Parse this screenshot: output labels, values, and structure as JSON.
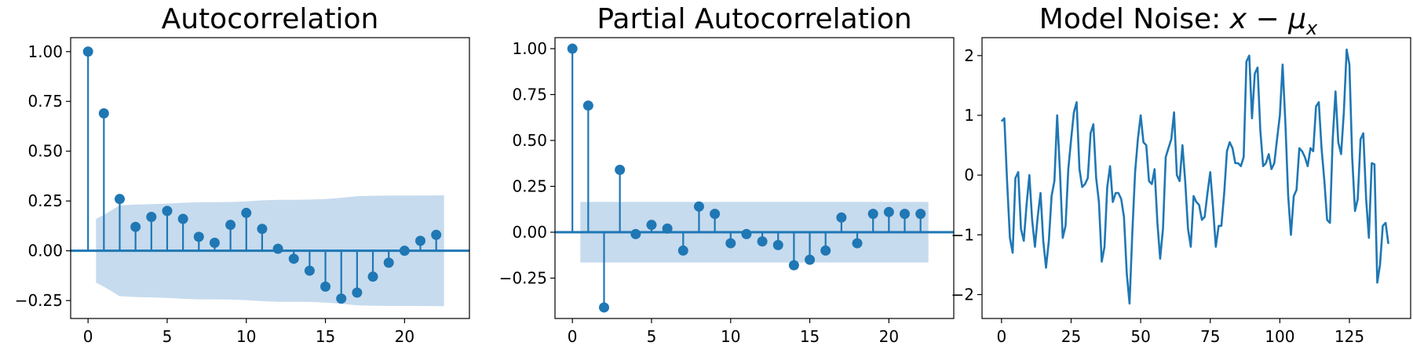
{
  "chart_data": [
    {
      "type": "stem",
      "title": "Autocorrelation",
      "xlabel": "",
      "ylabel": "",
      "xlim": [
        -1.1,
        24.1
      ],
      "ylim": [
        -0.34,
        1.07
      ],
      "xticks": [
        0,
        5,
        10,
        15,
        20
      ],
      "yticks": [
        1.0,
        0.75,
        0.5,
        0.25,
        0.0,
        -0.25
      ],
      "ytick_labels": [
        "1.00",
        "0.75",
        "0.50",
        "0.25",
        "0.00",
        "−0.25"
      ],
      "color": "#1f77b4",
      "band_color": "#c6dbee",
      "lags": [
        0,
        1,
        2,
        3,
        4,
        5,
        6,
        7,
        8,
        9,
        10,
        11,
        12,
        13,
        14,
        15,
        16,
        17,
        18,
        19,
        20,
        21,
        22
      ],
      "values": [
        1.0,
        0.69,
        0.26,
        0.12,
        0.17,
        0.2,
        0.16,
        0.07,
        0.04,
        0.13,
        0.19,
        0.11,
        0.01,
        -0.04,
        -0.1,
        -0.18,
        -0.24,
        -0.21,
        -0.13,
        -0.06,
        0.0,
        0.05,
        0.08
      ],
      "band": {
        "x": [
          0.5,
          1,
          2,
          3,
          4,
          5,
          6,
          7,
          8,
          9,
          10,
          11,
          12,
          13,
          14,
          15,
          16,
          17,
          18,
          19,
          20,
          21,
          22,
          22.5
        ],
        "upper": [
          0.16,
          0.18,
          0.228,
          0.232,
          0.234,
          0.237,
          0.241,
          0.244,
          0.244,
          0.245,
          0.248,
          0.253,
          0.256,
          0.256,
          0.257,
          0.26,
          0.266,
          0.274,
          0.276,
          0.277,
          0.277,
          0.277,
          0.278,
          0.278
        ],
        "lower": [
          -0.16,
          -0.18,
          -0.228,
          -0.232,
          -0.234,
          -0.237,
          -0.241,
          -0.244,
          -0.244,
          -0.245,
          -0.248,
          -0.253,
          -0.256,
          -0.256,
          -0.257,
          -0.26,
          -0.266,
          -0.274,
          -0.276,
          -0.277,
          -0.277,
          -0.277,
          -0.278,
          -0.278
        ]
      }
    },
    {
      "type": "stem",
      "title": "Partial Autocorrelation",
      "xlabel": "",
      "ylabel": "",
      "xlim": [
        -1.1,
        24.1
      ],
      "ylim": [
        -0.47,
        1.06
      ],
      "xticks": [
        0,
        5,
        10,
        15,
        20
      ],
      "yticks": [
        1.0,
        0.75,
        0.5,
        0.25,
        0.0,
        -0.25
      ],
      "ytick_labels": [
        "1.00",
        "0.75",
        "0.50",
        "0.25",
        "0.00",
        "−0.25"
      ],
      "color": "#1f77b4",
      "band_color": "#c6dbee",
      "lags": [
        0,
        1,
        2,
        3,
        4,
        5,
        6,
        7,
        8,
        9,
        10,
        11,
        12,
        13,
        14,
        15,
        16,
        17,
        18,
        19,
        20,
        21,
        22
      ],
      "values": [
        1.0,
        0.69,
        -0.41,
        0.34,
        -0.01,
        0.04,
        0.02,
        -0.1,
        0.14,
        0.1,
        -0.06,
        -0.01,
        -0.05,
        -0.07,
        -0.18,
        -0.15,
        -0.1,
        0.08,
        -0.06,
        0.1,
        0.11,
        0.1,
        0.1
      ],
      "band": {
        "x": [
          0.5,
          22.5
        ],
        "upper": [
          0.165,
          0.165
        ],
        "lower": [
          -0.165,
          -0.165
        ]
      }
    },
    {
      "type": "line",
      "title": "Model Noise: ",
      "title_math": [
        "x",
        " − ",
        "μ",
        "x"
      ],
      "xlabel": "",
      "ylabel": "",
      "xlim": [
        -7,
        147
      ],
      "ylim": [
        -2.4,
        2.3
      ],
      "xticks": [
        0,
        25,
        50,
        75,
        100,
        125
      ],
      "yticks": [
        2,
        1,
        0,
        -1,
        -2
      ],
      "ytick_labels": [
        "2",
        "1",
        "0",
        "−1",
        "−2"
      ],
      "color": "#1f77b4",
      "x_start": 0,
      "values": [
        0.9,
        0.95,
        -0.1,
        -1.05,
        -1.3,
        -0.05,
        0.05,
        -0.9,
        -1.1,
        -0.5,
        0.0,
        -0.75,
        -1.2,
        -0.7,
        -0.3,
        -1.1,
        -1.55,
        -1.1,
        -0.35,
        -0.1,
        1.0,
        0.05,
        -1.05,
        -0.85,
        0.1,
        0.6,
        1.05,
        1.22,
        0.1,
        -0.2,
        -0.15,
        -0.05,
        0.7,
        0.85,
        -0.05,
        -0.45,
        -1.45,
        -1.2,
        -0.2,
        0.15,
        -0.45,
        -0.3,
        -0.3,
        -0.4,
        -0.7,
        -1.65,
        -2.15,
        -0.95,
        0.05,
        0.6,
        1.0,
        0.55,
        0.5,
        -0.1,
        -0.15,
        0.1,
        -0.8,
        -1.4,
        -0.9,
        0.3,
        0.45,
        0.6,
        1.05,
        0.0,
        -0.1,
        0.5,
        -0.1,
        -0.9,
        -1.2,
        -0.35,
        -0.45,
        -0.5,
        -0.75,
        -0.7,
        -0.3,
        0.05,
        -0.55,
        -1.2,
        -0.85,
        -0.85,
        -0.3,
        0.4,
        0.55,
        0.45,
        0.2,
        0.2,
        0.15,
        0.3,
        1.9,
        2.0,
        0.95,
        1.7,
        1.8,
        0.75,
        0.15,
        0.2,
        0.35,
        0.1,
        0.2,
        0.6,
        1.0,
        1.85,
        0.85,
        -0.35,
        -1.0,
        -0.35,
        -0.25,
        0.45,
        0.4,
        0.3,
        0.15,
        0.45,
        0.4,
        1.15,
        1.22,
        0.45,
        -0.1,
        -0.75,
        -0.8,
        0.6,
        1.4,
        0.55,
        0.35,
        1.05,
        2.1,
        1.85,
        0.3,
        -0.6,
        -0.4,
        0.6,
        0.7,
        -0.4,
        -1.05,
        0.2,
        0.18,
        -1.8,
        -1.5,
        -0.85,
        -0.8,
        -1.15
      ]
    }
  ]
}
